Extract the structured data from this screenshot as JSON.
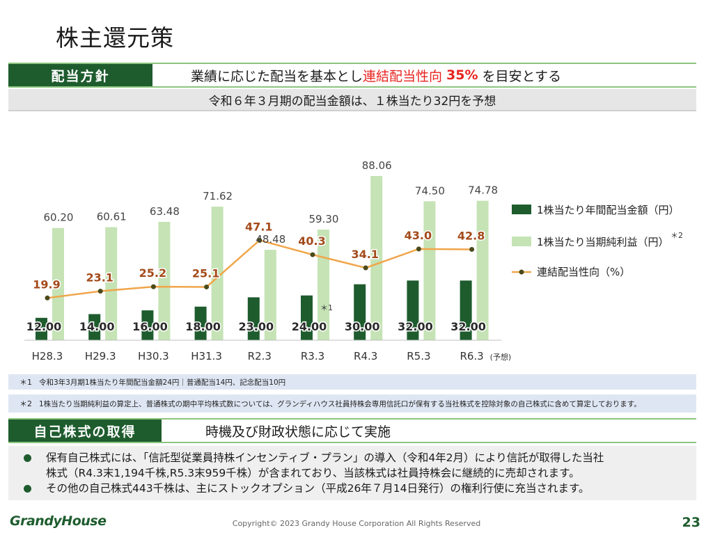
{
  "page": {
    "title": "株主還元策",
    "page_number": "23",
    "copyright": "Copyright© 2023 Grandy House Corporation All Rights Reserved",
    "logo_text": "GrandyHouse"
  },
  "dividend_policy": {
    "label": "配当方針",
    "text_prefix": "業績に応じた配当を基本とし",
    "text_highlight": "連結配当性向",
    "text_percent": "35%",
    "text_suffix": "を目安とする",
    "forecast": "令和６年３月期の配当金額は、１株当たり32円を予想"
  },
  "chart_data": {
    "type": "bar",
    "categories": [
      "H28.3",
      "H29.3",
      "H30.3",
      "H31.3",
      "R2.3",
      "R3.3",
      "R4.3",
      "R5.3",
      "R6.3"
    ],
    "forecast_suffix": "(予想)",
    "series": [
      {
        "name": "1株当たり年間配当金額（円）",
        "type": "bar",
        "color": "#1e5c2e",
        "values": [
          12.0,
          14.0,
          16.0,
          18.0,
          23.0,
          24.0,
          30.0,
          32.0,
          32.0
        ],
        "labels": [
          "12.00",
          "14.00",
          "16.00",
          "18.00",
          "23.00",
          "24.00",
          "30.00",
          "32.00",
          "32.00"
        ]
      },
      {
        "name": "1株当たり当期純利益（円）",
        "type": "bar",
        "color": "#c5e3b5",
        "values": [
          60.2,
          60.61,
          63.48,
          71.62,
          48.48,
          59.3,
          88.06,
          74.5,
          74.78
        ],
        "labels": [
          "60.20",
          "60.61",
          "63.48",
          "71.62",
          "48.48",
          "59.30",
          "88.06",
          "74.50",
          "74.78"
        ]
      },
      {
        "name": "連結配当性向（%）",
        "type": "line",
        "color": "#f0a54a",
        "values": [
          19.9,
          23.1,
          25.2,
          25.1,
          47.1,
          40.3,
          34.1,
          43.0,
          42.8
        ],
        "labels": [
          "19.9",
          "23.1",
          "25.2",
          "25.1",
          "47.1",
          "40.3",
          "34.1",
          "43.0",
          "42.8"
        ]
      }
    ],
    "annotations": [
      {
        "category": "R3.3",
        "text": "＊1"
      },
      {
        "legend_series": 1,
        "text": "＊2"
      }
    ],
    "legend_position": "right"
  },
  "notes": [
    {
      "mark": "＊1",
      "text": "令和3年3月期1株当たり年間配当金額24円｜普通配当14円、記念配当10円"
    },
    {
      "mark": "＊2",
      "text": "1株当たり当期純利益の算定上、普通株式の期中平均株式数については、グランディハウス社員持株会専用信託口が保有する当社株式を控除対象の自己株式に含めて算定しております。"
    }
  ],
  "treasury": {
    "label": "自己株式の取得",
    "text": "時機及び財政状態に応じて実施",
    "bullets": [
      [
        "保有自己株式には、「信託型従業員持株インセンティブ・プラン」の導入（令和4年2月）により信託が取得した当社",
        "株式（R4.3末1,194千株,R5.3末959千株）が含まれており、当該株式は社員持株会に継続的に売却されます。"
      ],
      [
        "その他の自己株式443千株は、主にストックオプション（平成26年７月14日発行）の権利行使に充当されます。"
      ]
    ]
  }
}
